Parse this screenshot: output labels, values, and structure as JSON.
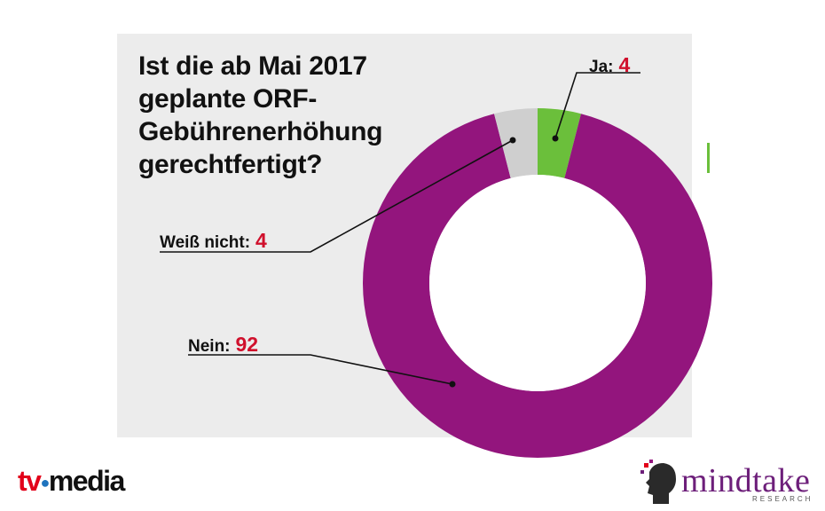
{
  "question_lines": [
    "Ist die ab Mai 2017",
    "geplante ORF-",
    "Gebührenerhöhung",
    "gerechtfertigt?"
  ],
  "chart_data": {
    "type": "pie",
    "variant": "donut",
    "slices": [
      {
        "label": "Ja:",
        "value": 4,
        "color": "#6bbf3b"
      },
      {
        "label": "Nein:",
        "value": 92,
        "color": "#93157d"
      },
      {
        "label": "Weiß nicht:",
        "value": 4,
        "color": "#cfcfcf"
      }
    ]
  },
  "labels": {
    "ja": {
      "text": "Ja:",
      "value": "4"
    },
    "weiss": {
      "text": "Weiß nicht:",
      "value": "4"
    },
    "nein": {
      "text": "Nein:",
      "value": "92"
    }
  },
  "logos": {
    "tvmedia": {
      "tv": "tv",
      "media": "media"
    },
    "mindtake": {
      "word": "mindtake",
      "sub": "RESEARCH"
    }
  },
  "colors": {
    "accent_value": "#d0102c",
    "panel": "#ececec"
  }
}
